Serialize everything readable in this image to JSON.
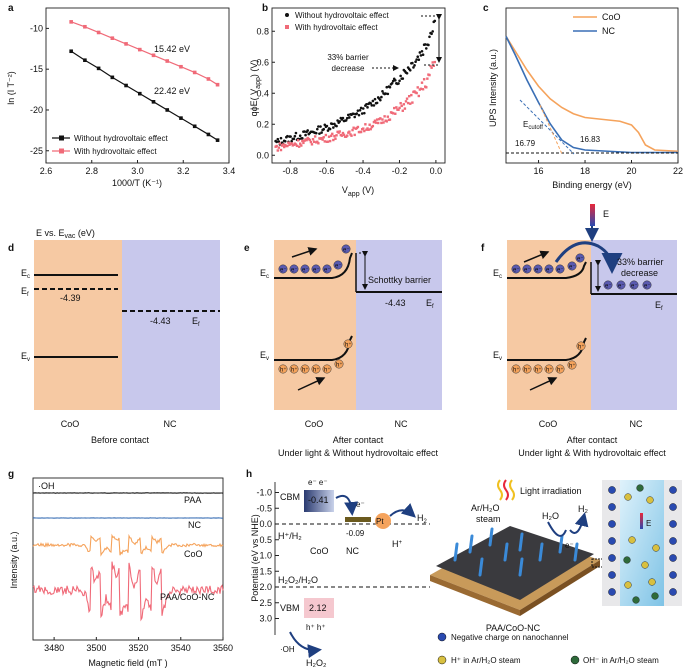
{
  "colors": {
    "black": "#111111",
    "pink": "#f06a78",
    "orange": "#f5a35c",
    "blue": "#3a6fb5",
    "coo_bg": "#f6c9a3",
    "nc_bg": "#c8c8ec",
    "cbm_grad": "#5a6fa0",
    "vbm_pink": "#f5c8cf",
    "water": "#9fd2ec",
    "dark": "#2a3a6a"
  },
  "panel_a": {
    "label": "a",
    "xlabel": "1000/T (K⁻¹)",
    "ylabel": "ln (I T⁻²)",
    "xticks": [
      "2.6",
      "2.8",
      "3.0",
      "3.2",
      "3.4"
    ],
    "yticks": [
      "-10",
      "-15",
      "-20",
      "-25"
    ],
    "ann_top": "15.42 eV",
    "ann_bottom": "22.42 eV",
    "legend": [
      "Without hydrovoltaic effect",
      "With hydrovoltaic effect"
    ],
    "chart_data": {
      "type": "line",
      "xlim": [
        2.6,
        3.4
      ],
      "ylim": [
        -26.5,
        -7.5
      ],
      "series": [
        {
          "name": "Without hydrovoltaic effect",
          "color": "#111111",
          "x": [
            2.71,
            2.77,
            2.83,
            2.89,
            2.95,
            3.01,
            3.07,
            3.13,
            3.19,
            3.25,
            3.31,
            3.35
          ],
          "y": [
            -12.8,
            -13.9,
            -14.9,
            -16.0,
            -17.0,
            -18.0,
            -19.0,
            -20.0,
            -21.0,
            -22.0,
            -23.0,
            -23.7
          ]
        },
        {
          "name": "With hydrovoltaic effect",
          "color": "#f06a78",
          "x": [
            2.71,
            2.77,
            2.83,
            2.89,
            2.95,
            3.01,
            3.07,
            3.13,
            3.19,
            3.25,
            3.31,
            3.35
          ],
          "y": [
            -9.2,
            -9.8,
            -10.5,
            -11.2,
            -11.9,
            -12.6,
            -13.3,
            -14.0,
            -14.7,
            -15.4,
            -16.2,
            -16.9
          ]
        }
      ]
    }
  },
  "panel_b": {
    "label": "b",
    "xlabel": "V",
    "xlabel_sub": "app",
    "xlabel_unit": " (V)",
    "ylabel": "qϕE( V",
    "ylabel_sub": "app",
    "ylabel_end": ") (V)",
    "xticks": [
      "-0.8",
      "-0.6",
      "-0.4",
      "-0.2",
      "0.0"
    ],
    "yticks": [
      "0.0",
      "0.2",
      "0.4",
      "0.6",
      "0.8"
    ],
    "legend": [
      "Without hydrovoltaic effect",
      "With hydrovoltaic effect"
    ],
    "annotation": [
      "33% barrier",
      "decrease"
    ],
    "chart_data": {
      "type": "scatter",
      "xlim": [
        -0.9,
        0.05
      ],
      "ylim": [
        -0.05,
        0.95
      ],
      "series": [
        {
          "name": "Without hydrovoltaic effect",
          "color": "#111111",
          "x": [
            -0.88,
            -0.8,
            -0.7,
            -0.6,
            -0.5,
            -0.4,
            -0.3,
            -0.2,
            -0.1,
            -0.05,
            0.0
          ],
          "y": [
            0.08,
            0.11,
            0.14,
            0.18,
            0.23,
            0.29,
            0.38,
            0.5,
            0.63,
            0.72,
            0.9
          ]
        },
        {
          "name": "With hydrovoltaic effect",
          "color": "#f06a78",
          "x": [
            -0.88,
            -0.8,
            -0.7,
            -0.6,
            -0.5,
            -0.4,
            -0.3,
            -0.2,
            -0.1,
            -0.05,
            0.0
          ],
          "y": [
            0.05,
            0.07,
            0.09,
            0.11,
            0.14,
            0.17,
            0.22,
            0.3,
            0.4,
            0.48,
            0.62
          ]
        }
      ]
    }
  },
  "panel_c": {
    "label": "c",
    "xlabel": "Binding energy (eV)",
    "ylabel": "UPS Intensity (a.u.)",
    "xticks": [
      "16",
      "18",
      "20",
      "22"
    ],
    "legend": [
      "CoO",
      "NC"
    ],
    "ecutoff": "E",
    "ecutoff_sub": "cutoff",
    "val1": "16.79",
    "val2": "16.83",
    "chart_data": {
      "type": "line",
      "xlim": [
        14.6,
        22
      ],
      "series": [
        {
          "name": "CoO",
          "color": "#f5a35c",
          "x": [
            14.6,
            15,
            15.5,
            16,
            16.5,
            17,
            17.5,
            18,
            18.5,
            19,
            19.5,
            20,
            20.3,
            20.6,
            21,
            22
          ],
          "y": [
            0.95,
            0.83,
            0.68,
            0.55,
            0.45,
            0.38,
            0.33,
            0.3,
            0.29,
            0.28,
            0.27,
            0.24,
            0.18,
            0.08,
            0.04,
            0.03
          ]
        },
        {
          "name": "NC",
          "color": "#3a6fb5",
          "x": [
            14.6,
            15,
            15.5,
            16,
            16.5,
            17,
            17.5,
            18,
            19,
            20,
            22
          ],
          "y": [
            0.95,
            0.8,
            0.6,
            0.42,
            0.25,
            0.12,
            0.06,
            0.04,
            0.03,
            0.02,
            0.02
          ]
        }
      ]
    }
  },
  "panel_d": {
    "label": "d",
    "title": "E vs. E",
    "title_sub": "vac",
    "title_end": " (eV)",
    "ec": "E",
    "ec_sub": "c",
    "ef": "E",
    "ef_sub": "f",
    "ev": "E",
    "ev_sub": "v",
    "coo_val": "-4.39",
    "nc_val": "-4.43",
    "nc_ef": "E",
    "nc_ef_sub": "f",
    "coo": "CoO",
    "nc": "NC",
    "caption": "Before contact"
  },
  "panel_e": {
    "label": "e",
    "ec": "E",
    "ec_sub": "c",
    "ev": "E",
    "ev_sub": "v",
    "schottky": "Schottky barrier",
    "nc_val": "-4.43",
    "ef": "E",
    "ef_sub": "f",
    "coo": "CoO",
    "nc": "NC",
    "caption1": "After contact",
    "caption2": "Under light & Without hydrovoltaic effect"
  },
  "panel_f": {
    "label": "f",
    "ec": "E",
    "ec_sub": "c",
    "ev": "E",
    "ev_sub": "v",
    "efield": "E",
    "barrier": [
      "33% barrier",
      "decrease"
    ],
    "ef": "E",
    "ef_sub": "f",
    "coo": "CoO",
    "nc": "NC",
    "caption1": "After contact",
    "caption2": "Under light & With hydrovoltaic effect"
  },
  "panel_g": {
    "label": "g",
    "title": "·OH",
    "xlabel": "Magnetic field (mT )",
    "ylabel": "Intensity (a.u.)",
    "xticks": [
      "3480",
      "3500",
      "3520",
      "3540",
      "3560"
    ],
    "traces": [
      {
        "name": "PAA",
        "color": "#111111"
      },
      {
        "name": "NC",
        "color": "#3a6fb5"
      },
      {
        "name": "CoO",
        "color": "#f5a35c"
      },
      {
        "name": "PAA/CoO-NC",
        "color": "#f06a78"
      }
    ]
  },
  "panel_h": {
    "label": "h",
    "ylabel": "Potential (eV vs NHE)",
    "yticks": [
      "-1.0",
      "-0.5",
      "0.0",
      "0.5",
      "1.0",
      "1.5",
      "2.0",
      "2.5",
      "3.0"
    ],
    "cbm": "CBM",
    "cbm_val": "-0.41",
    "nc_val": "-0.09",
    "pt": "Pt",
    "h2": "H",
    "h2_sub": "2",
    "hplus": "H",
    "hplus_sup": "+",
    "h_h2": "H⁺/H₂",
    "coo": "CoO",
    "nc": "NC",
    "h2o2_h2o": "H₂O₂/H₂O",
    "vbm": "VBM",
    "vbm_val": "2.12",
    "oh": "·OH",
    "h2o2": "H₂O₂",
    "light": "Light irradiation",
    "steam": [
      "Ar/H₂O",
      "steam"
    ],
    "h2o": "H₂O",
    "h2r": "H₂",
    "device": "PAA/CoO-NC",
    "efield": "E",
    "legend1": "Negative charge on nanochannel",
    "legend2": "H⁺ in Ar/H₂O steam",
    "legend3": "OH⁻ in Ar/H₂O steam"
  }
}
